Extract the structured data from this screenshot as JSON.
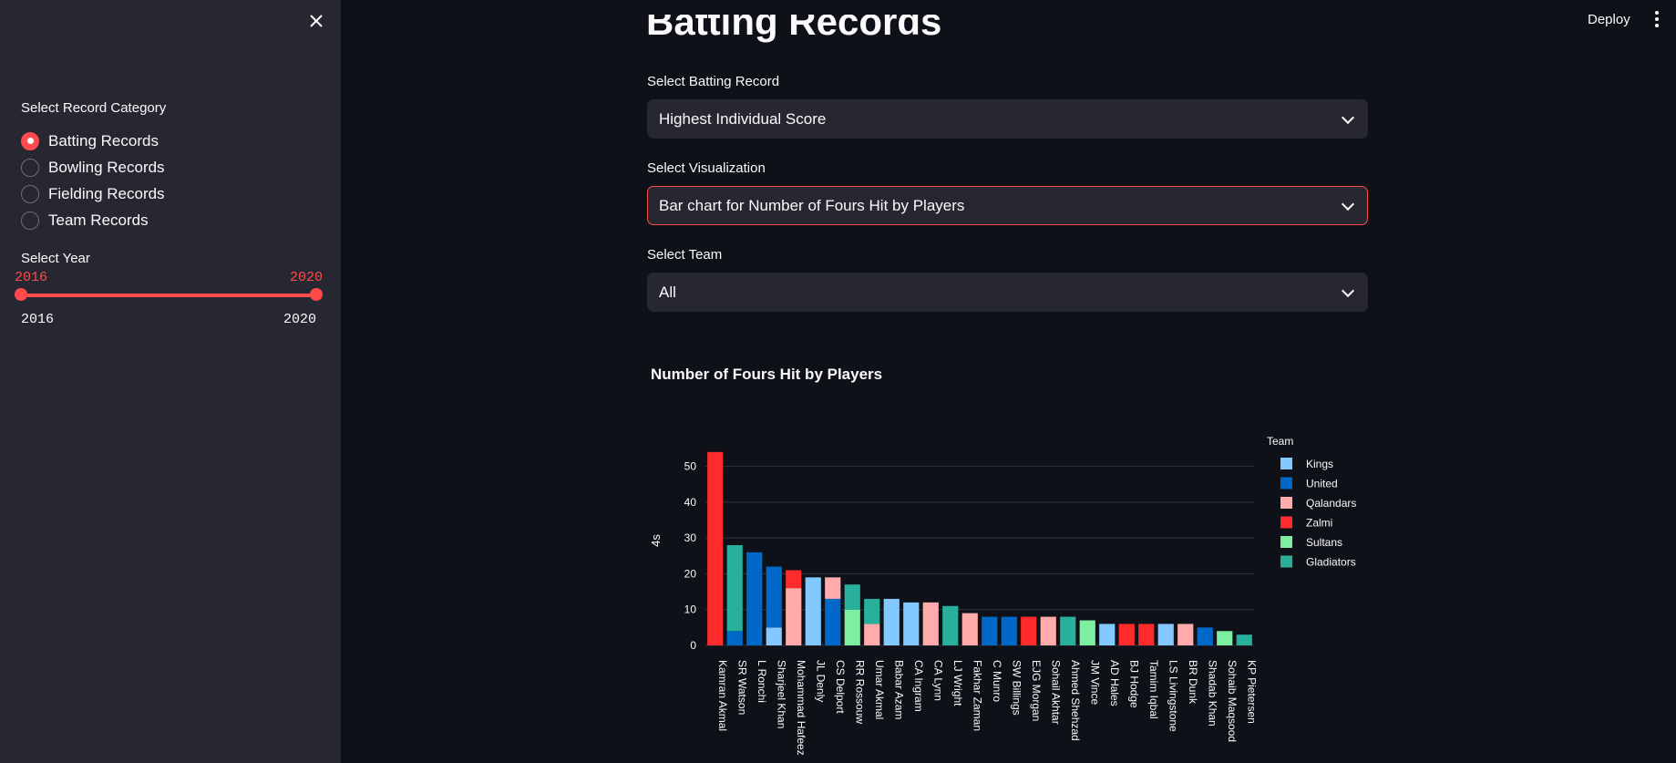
{
  "sidebar": {
    "category_label": "Select Record Category",
    "categories": [
      "Batting Records",
      "Bowling Records",
      "Fielding Records",
      "Team Records"
    ],
    "selected_category": 0,
    "year_label": "Select Year",
    "year_min_value": "2016",
    "year_max_value": "2020",
    "year_range_min": "2016",
    "year_range_max": "2020"
  },
  "header": {
    "deploy_label": "Deploy"
  },
  "main": {
    "page_title": "Batting Records",
    "batting_record_label": "Select Batting Record",
    "batting_record_value": "Highest Individual Score",
    "visualization_label": "Select Visualization",
    "visualization_value": "Bar chart for Number of Fours Hit by Players",
    "team_label": "Select Team",
    "team_value": "All"
  },
  "colors": {
    "Kings": "#83c9ff",
    "United": "#0068c9",
    "Qalandars": "#ffabab",
    "Zalmi": "#ff2b2b",
    "Sultans": "#7defa1",
    "Gladiators": "#29b09d"
  },
  "chart_data": {
    "type": "bar",
    "title": "Number of Fours Hit by Players",
    "xlabel": "",
    "ylabel": "4s",
    "ylim": [
      0,
      56
    ],
    "yticks": [
      0,
      10,
      20,
      30,
      40,
      50
    ],
    "legend_title": "Team",
    "legend_position": "right",
    "grid": true,
    "series_order": [
      "Kings",
      "United",
      "Qalandars",
      "Zalmi",
      "Sultans",
      "Gladiators"
    ],
    "categories": [
      "Kamran Akmal",
      "SR Watson",
      "L Ronchi",
      "Sharjeel Khan",
      "Mohammad Hafeez",
      "JL Denly",
      "CS Delport",
      "RR Rossouw",
      "Umar Akmal",
      "Babar Azam",
      "CA Ingram",
      "CA Lynn",
      "LJ Wright",
      "Fakhar Zaman",
      "C Munro",
      "SW Billings",
      "EJG Morgan",
      "Sohail Akhtar",
      "Ahmed Shehzad",
      "JM Vince",
      "AD Hales",
      "BJ Hodge",
      "Tamim Iqbal",
      "LS Livingstone",
      "BR Dunk",
      "Shadab Khan",
      "Sohaib Maqsood",
      "KP Pietersen"
    ],
    "stacks": [
      [
        {
          "team": "Zalmi",
          "value": 54
        }
      ],
      [
        {
          "team": "United",
          "value": 4
        },
        {
          "team": "Gladiators",
          "value": 24
        }
      ],
      [
        {
          "team": "United",
          "value": 26
        }
      ],
      [
        {
          "team": "Kings",
          "value": 5
        },
        {
          "team": "United",
          "value": 17
        }
      ],
      [
        {
          "team": "Qalandars",
          "value": 16
        },
        {
          "team": "Zalmi",
          "value": 5
        }
      ],
      [
        {
          "team": "Kings",
          "value": 19
        }
      ],
      [
        {
          "team": "United",
          "value": 13
        },
        {
          "team": "Qalandars",
          "value": 6
        }
      ],
      [
        {
          "team": "Sultans",
          "value": 10
        },
        {
          "team": "Gladiators",
          "value": 7
        }
      ],
      [
        {
          "team": "Qalandars",
          "value": 6
        },
        {
          "team": "Gladiators",
          "value": 7
        }
      ],
      [
        {
          "team": "Kings",
          "value": 13
        }
      ],
      [
        {
          "team": "Kings",
          "value": 12
        }
      ],
      [
        {
          "team": "Qalandars",
          "value": 12
        }
      ],
      [
        {
          "team": "Gladiators",
          "value": 11
        }
      ],
      [
        {
          "team": "Qalandars",
          "value": 9
        }
      ],
      [
        {
          "team": "United",
          "value": 8
        }
      ],
      [
        {
          "team": "United",
          "value": 8
        }
      ],
      [
        {
          "team": "Zalmi",
          "value": 8
        }
      ],
      [
        {
          "team": "Qalandars",
          "value": 8
        }
      ],
      [
        {
          "team": "Gladiators",
          "value": 8
        }
      ],
      [
        {
          "team": "Sultans",
          "value": 7
        }
      ],
      [
        {
          "team": "Kings",
          "value": 6
        }
      ],
      [
        {
          "team": "Zalmi",
          "value": 6
        }
      ],
      [
        {
          "team": "Zalmi",
          "value": 6
        }
      ],
      [
        {
          "team": "Kings",
          "value": 6
        }
      ],
      [
        {
          "team": "Qalandars",
          "value": 6
        }
      ],
      [
        {
          "team": "United",
          "value": 5
        }
      ],
      [
        {
          "team": "Sultans",
          "value": 4
        }
      ],
      [
        {
          "team": "Gladiators",
          "value": 3
        }
      ]
    ]
  }
}
